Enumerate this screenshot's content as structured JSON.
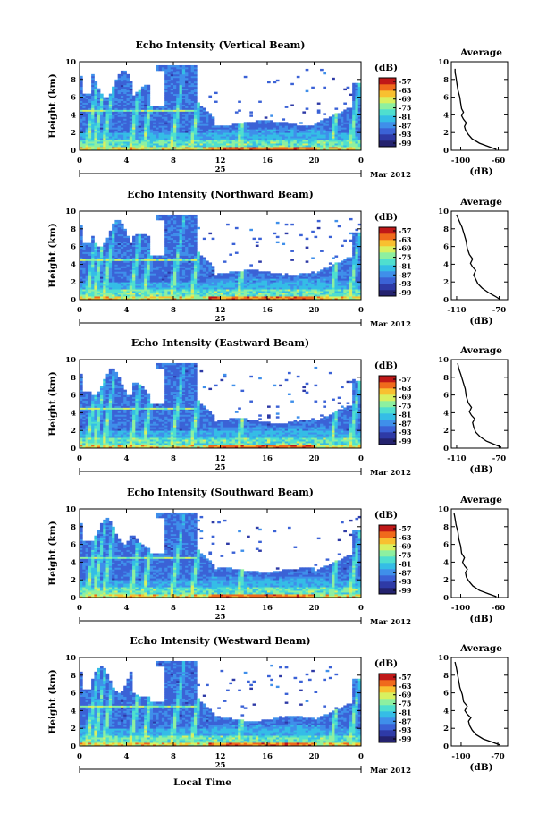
{
  "colors": {
    "colormap": [
      "#24226e",
      "#2e3aa6",
      "#3b62d6",
      "#3f8fea",
      "#35bde6",
      "#4fdfcf",
      "#8df0a0",
      "#d8f060",
      "#f8c030",
      "#f06a1c",
      "#c01818"
    ],
    "background": "#ffffff",
    "axis": "#000000"
  },
  "chart_data": [
    {
      "type": "heatmap",
      "title": "Echo Intensity (Vertical Beam)",
      "ylabel": "Height (km)",
      "xlabel": "",
      "xlim": [
        0,
        24
      ],
      "ylim": [
        0,
        10
      ],
      "x_ticks": [
        "0",
        "4",
        "8",
        "12",
        "16",
        "20",
        "0"
      ],
      "y_ticks": [
        "0",
        "2",
        "4",
        "6",
        "8",
        "10"
      ],
      "date_label": "25",
      "month_label": "Mar 2012",
      "colorbar": {
        "label": "(dB)",
        "ticks": [
          "-57",
          "-63",
          "-69",
          "-75",
          "-81",
          "-87",
          "-93",
          "-99"
        ]
      },
      "average": {
        "title": "Average",
        "xlabel": "(dB)",
        "x_ticks": [
          "-100",
          "-60"
        ],
        "xlim": [
          -110,
          -50
        ],
        "y_ticks": [
          "0",
          "2",
          "4",
          "6",
          "8",
          "10"
        ],
        "profile": [
          [
            -62,
            0.1
          ],
          [
            -70,
            0.4
          ],
          [
            -80,
            0.8
          ],
          [
            -88,
            1.3
          ],
          [
            -92,
            1.8
          ],
          [
            -95,
            2.3
          ],
          [
            -96,
            2.7
          ],
          [
            -94,
            3.1
          ],
          [
            -97,
            3.5
          ],
          [
            -99,
            3.9
          ],
          [
            -97,
            4.3
          ],
          [
            -99,
            4.7
          ],
          [
            -100,
            5.3
          ],
          [
            -101,
            6.0
          ],
          [
            -103,
            6.8
          ],
          [
            -104,
            7.5
          ],
          [
            -105,
            8.2
          ],
          [
            -106,
            8.8
          ],
          [
            -106,
            9.2
          ]
        ]
      }
    },
    {
      "type": "heatmap",
      "title": "Echo Intensity (Northward Beam)",
      "ylabel": "Height (km)",
      "xlabel": "",
      "xlim": [
        0,
        24
      ],
      "ylim": [
        0,
        10
      ],
      "x_ticks": [
        "0",
        "4",
        "8",
        "12",
        "16",
        "20",
        "0"
      ],
      "y_ticks": [
        "0",
        "2",
        "4",
        "6",
        "8",
        "10"
      ],
      "date_label": "25",
      "month_label": "Mar 2012",
      "colorbar": {
        "label": "(dB)",
        "ticks": [
          "-57",
          "-63",
          "-69",
          "-75",
          "-81",
          "-87",
          "-93",
          "-99"
        ]
      },
      "average": {
        "title": "Average",
        "xlabel": "(dB)",
        "x_ticks": [
          "-110",
          "-70"
        ],
        "xlim": [
          -115,
          -62
        ],
        "y_ticks": [
          "0",
          "2",
          "4",
          "6",
          "8",
          "10"
        ],
        "profile": [
          [
            -70,
            0.1
          ],
          [
            -74,
            0.4
          ],
          [
            -80,
            0.8
          ],
          [
            -86,
            1.3
          ],
          [
            -90,
            1.8
          ],
          [
            -92,
            2.3
          ],
          [
            -94,
            2.8
          ],
          [
            -92,
            3.3
          ],
          [
            -95,
            3.7
          ],
          [
            -97,
            4.1
          ],
          [
            -95,
            4.6
          ],
          [
            -98,
            5.1
          ],
          [
            -100,
            5.8
          ],
          [
            -101,
            6.6
          ],
          [
            -103,
            7.4
          ],
          [
            -105,
            8.2
          ],
          [
            -108,
            9.0
          ],
          [
            -110,
            9.6
          ]
        ]
      }
    },
    {
      "type": "heatmap",
      "title": "Echo Intensity (Eastward Beam)",
      "ylabel": "Height (km)",
      "xlabel": "",
      "xlim": [
        0,
        24
      ],
      "ylim": [
        0,
        10
      ],
      "x_ticks": [
        "0",
        "4",
        "8",
        "12",
        "16",
        "20",
        "0"
      ],
      "y_ticks": [
        "0",
        "2",
        "4",
        "6",
        "8",
        "10"
      ],
      "date_label": "25",
      "month_label": "Mar 2012",
      "colorbar": {
        "label": "(dB)",
        "ticks": [
          "-57",
          "-63",
          "-69",
          "-75",
          "-81",
          "-87",
          "-93",
          "-99"
        ]
      },
      "average": {
        "title": "Average",
        "xlabel": "(dB)",
        "x_ticks": [
          "-110",
          "-70"
        ],
        "xlim": [
          -115,
          -62
        ],
        "y_ticks": [
          "0",
          "2",
          "4",
          "6",
          "8",
          "10"
        ],
        "profile": [
          [
            -68,
            0.1
          ],
          [
            -74,
            0.4
          ],
          [
            -82,
            0.8
          ],
          [
            -88,
            1.3
          ],
          [
            -92,
            1.8
          ],
          [
            -94,
            2.4
          ],
          [
            -95,
            2.9
          ],
          [
            -93,
            3.3
          ],
          [
            -96,
            3.7
          ],
          [
            -98,
            4.1
          ],
          [
            -96,
            4.6
          ],
          [
            -99,
            5.1
          ],
          [
            -101,
            5.9
          ],
          [
            -102,
            6.7
          ],
          [
            -104,
            7.5
          ],
          [
            -106,
            8.3
          ],
          [
            -108,
            9.0
          ],
          [
            -109,
            9.6
          ]
        ]
      }
    },
    {
      "type": "heatmap",
      "title": "Echo Intensity (Southward Beam)",
      "ylabel": "Height (km)",
      "xlabel": "",
      "xlim": [
        0,
        24
      ],
      "ylim": [
        0,
        10
      ],
      "x_ticks": [
        "0",
        "4",
        "8",
        "12",
        "16",
        "20",
        "0"
      ],
      "y_ticks": [
        "0",
        "2",
        "4",
        "6",
        "8",
        "10"
      ],
      "date_label": "25",
      "month_label": "Mar 2012",
      "colorbar": {
        "label": "(dB)",
        "ticks": [
          "-57",
          "-63",
          "-69",
          "-75",
          "-81",
          "-87",
          "-93",
          "-99"
        ]
      },
      "average": {
        "title": "Average",
        "xlabel": "(dB)",
        "x_ticks": [
          "-100",
          "-60"
        ],
        "xlim": [
          -110,
          -50
        ],
        "y_ticks": [
          "0",
          "2",
          "4",
          "6",
          "8",
          "10"
        ],
        "profile": [
          [
            -62,
            0.1
          ],
          [
            -70,
            0.4
          ],
          [
            -80,
            0.8
          ],
          [
            -87,
            1.3
          ],
          [
            -91,
            1.8
          ],
          [
            -94,
            2.3
          ],
          [
            -95,
            2.8
          ],
          [
            -93,
            3.2
          ],
          [
            -96,
            3.6
          ],
          [
            -98,
            4.0
          ],
          [
            -96,
            4.5
          ],
          [
            -99,
            5.0
          ],
          [
            -100,
            5.8
          ],
          [
            -102,
            6.6
          ],
          [
            -103,
            7.4
          ],
          [
            -105,
            8.2
          ],
          [
            -106,
            8.9
          ],
          [
            -107,
            9.5
          ]
        ]
      }
    },
    {
      "type": "heatmap",
      "title": "Echo Intensity (Westward Beam)",
      "ylabel": "Height (km)",
      "xlabel": "Local Time",
      "xlim": [
        0,
        24
      ],
      "ylim": [
        0,
        10
      ],
      "x_ticks": [
        "0",
        "4",
        "8",
        "12",
        "16",
        "20",
        "0"
      ],
      "y_ticks": [
        "0",
        "2",
        "4",
        "6",
        "8",
        "10"
      ],
      "date_label": "25",
      "month_label": "Mar 2012",
      "colorbar": {
        "label": "(dB)",
        "ticks": [
          "-57",
          "-63",
          "-69",
          "-75",
          "-81",
          "-87",
          "-93",
          "-99"
        ]
      },
      "average": {
        "title": "Average",
        "xlabel": "(dB)",
        "x_ticks": [
          "-100",
          "-70"
        ],
        "xlim": [
          -108,
          -62
        ],
        "y_ticks": [
          "0",
          "2",
          "4",
          "6",
          "8",
          "10"
        ],
        "profile": [
          [
            -68,
            0.1
          ],
          [
            -74,
            0.4
          ],
          [
            -82,
            0.8
          ],
          [
            -88,
            1.3
          ],
          [
            -91,
            1.8
          ],
          [
            -93,
            2.3
          ],
          [
            -94,
            2.8
          ],
          [
            -92,
            3.2
          ],
          [
            -95,
            3.6
          ],
          [
            -97,
            4.0
          ],
          [
            -95,
            4.5
          ],
          [
            -98,
            5.0
          ],
          [
            -99,
            5.8
          ],
          [
            -101,
            6.6
          ],
          [
            -102,
            7.4
          ],
          [
            -103,
            8.2
          ],
          [
            -104,
            8.9
          ],
          [
            -105,
            9.5
          ]
        ]
      }
    }
  ]
}
